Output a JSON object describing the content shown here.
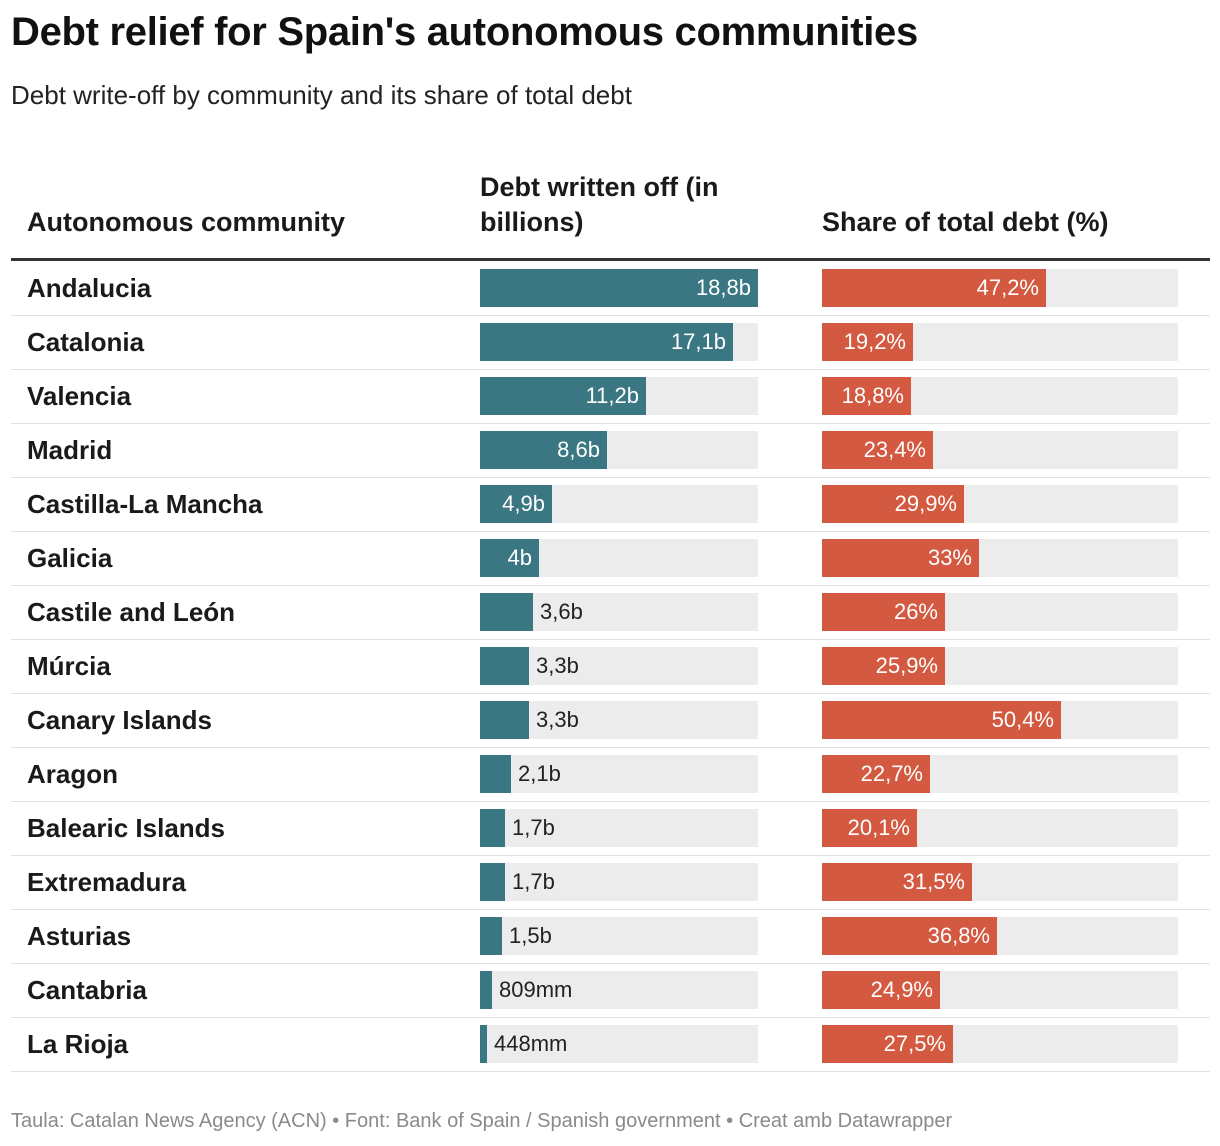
{
  "title": "Debt relief for Spain's autonomous communities",
  "subtitle": "Debt write-off by community and its share of total debt",
  "footer": "Taula: Catalan News Agency (ACN) • Font: Bank of Spain / Spanish government • Creat amb Datawrapper",
  "colors": {
    "debt_bar": "#3a7783",
    "share_bar": "#d35940",
    "track": "#ececec"
  },
  "chart_data": {
    "type": "table",
    "columns": [
      "Autonomous community",
      "Debt written off (in billions)",
      "Share of total debt (%)"
    ],
    "debt_max": 18.8,
    "share_max": 75,
    "rows": [
      {
        "community": "Andalucia",
        "debt": 18.8,
        "debt_label": "18,8b",
        "share": 47.2,
        "share_label": "47,2%"
      },
      {
        "community": "Catalonia",
        "debt": 17.1,
        "debt_label": "17,1b",
        "share": 19.2,
        "share_label": "19,2%"
      },
      {
        "community": "Valencia",
        "debt": 11.2,
        "debt_label": "11,2b",
        "share": 18.8,
        "share_label": "18,8%"
      },
      {
        "community": "Madrid",
        "debt": 8.6,
        "debt_label": "8,6b",
        "share": 23.4,
        "share_label": "23,4%"
      },
      {
        "community": "Castilla-La Mancha",
        "debt": 4.9,
        "debt_label": "4,9b",
        "share": 29.9,
        "share_label": "29,9%"
      },
      {
        "community": "Galicia",
        "debt": 4.0,
        "debt_label": "4b",
        "share": 33.0,
        "share_label": "33%"
      },
      {
        "community": "Castile and León",
        "debt": 3.6,
        "debt_label": "3,6b",
        "share": 26.0,
        "share_label": "26%"
      },
      {
        "community": "Múrcia",
        "debt": 3.3,
        "debt_label": "3,3b",
        "share": 25.9,
        "share_label": "25,9%"
      },
      {
        "community": "Canary Islands",
        "debt": 3.3,
        "debt_label": "3,3b",
        "share": 50.4,
        "share_label": "50,4%"
      },
      {
        "community": "Aragon",
        "debt": 2.1,
        "debt_label": "2,1b",
        "share": 22.7,
        "share_label": "22,7%"
      },
      {
        "community": "Balearic Islands",
        "debt": 1.7,
        "debt_label": "1,7b",
        "share": 20.1,
        "share_label": "20,1%"
      },
      {
        "community": "Extremadura",
        "debt": 1.7,
        "debt_label": "1,7b",
        "share": 31.5,
        "share_label": "31,5%"
      },
      {
        "community": "Asturias",
        "debt": 1.5,
        "debt_label": "1,5b",
        "share": 36.8,
        "share_label": "36,8%"
      },
      {
        "community": "Cantabria",
        "debt": 0.809,
        "debt_label": "809mm",
        "share": 24.9,
        "share_label": "24,9%"
      },
      {
        "community": "La Rioja",
        "debt": 0.448,
        "debt_label": "448mm",
        "share": 27.5,
        "share_label": "27,5%"
      }
    ]
  }
}
